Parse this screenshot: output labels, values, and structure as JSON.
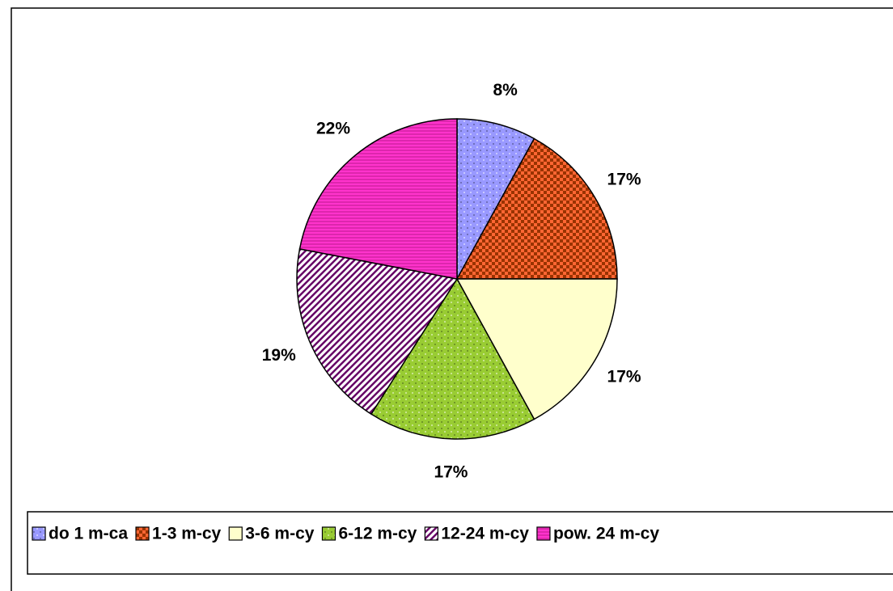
{
  "chart_data": {
    "type": "pie",
    "categories": [
      "do 1 m-ca",
      "1-3 m-cy",
      "3-6 m-cy",
      "6-12 m-cy",
      "12-24 m-cy",
      "pow. 24 m-cy"
    ],
    "values": [
      8,
      17,
      17,
      17,
      19,
      22
    ],
    "value_labels": [
      "8%",
      "17%",
      "17%",
      "17%",
      "19%",
      "22%"
    ],
    "colors": [
      "#9999ff",
      "#993300",
      "#ffffcc",
      "#99cc33",
      "#ffffff",
      "#ff33cc"
    ],
    "patterns": [
      "dots",
      "checker",
      "none",
      "dots",
      "diagonal",
      "horizontal"
    ],
    "legend": "bottom"
  }
}
